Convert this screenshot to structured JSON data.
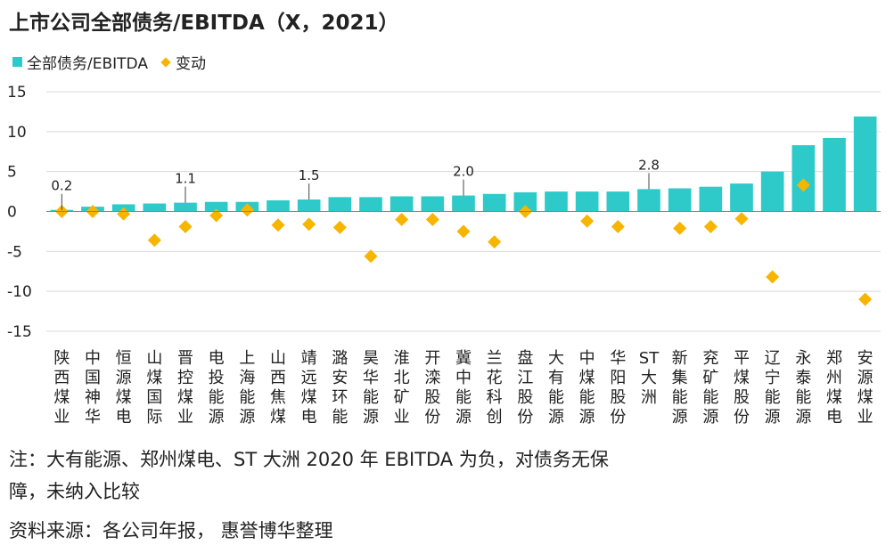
{
  "title": "上市公司全部债务/EBITDA（X，2021）",
  "legend": {
    "bar_label": "全部债务/EBITDA",
    "marker_label": "变动"
  },
  "colors": {
    "bar": "#2ec9c9",
    "marker": "#f7b500",
    "grid": "#d9d9d9",
    "axis": "#888888"
  },
  "chart_data": {
    "type": "bar",
    "categories": [
      "陕西煤业",
      "中国神华",
      "恒源煤电",
      "山煤国际",
      "晋控煤业",
      "电投能源",
      "上海能源",
      "山西焦煤",
      "靖远煤电",
      "潞安环能",
      "昊华能源",
      "淮北矿业",
      "开滦股份",
      "冀中能源",
      "兰花科创",
      "盘江股份",
      "大有能源",
      "中煤能源",
      "华阳股份",
      "ST大洲",
      "新集能源",
      "兖矿能源",
      "平煤股份",
      "辽宁能源",
      "永泰能源",
      "郑州煤电",
      "安源煤业"
    ],
    "series": [
      {
        "name": "全部债务/EBITDA",
        "kind": "bar",
        "values": [
          0.2,
          0.6,
          0.9,
          1.0,
          1.1,
          1.2,
          1.2,
          1.4,
          1.5,
          1.8,
          1.8,
          1.9,
          1.9,
          2.0,
          2.2,
          2.4,
          2.5,
          2.5,
          2.5,
          2.8,
          2.9,
          3.1,
          3.5,
          5.0,
          8.3,
          9.2,
          11.9
        ]
      },
      {
        "name": "变动",
        "kind": "marker",
        "values": [
          0.0,
          0.0,
          -0.3,
          -3.6,
          -1.9,
          -0.5,
          0.2,
          -1.7,
          -1.6,
          -2.0,
          -5.6,
          -1.0,
          -1.0,
          -2.5,
          -3.8,
          0.0,
          null,
          -1.2,
          -1.9,
          null,
          -2.1,
          -1.9,
          -0.9,
          -8.2,
          3.3,
          null,
          -11.0
        ]
      }
    ],
    "data_labels": [
      {
        "index": 0,
        "text": "0.2"
      },
      {
        "index": 4,
        "text": "1.1"
      },
      {
        "index": 8,
        "text": "1.5"
      },
      {
        "index": 13,
        "text": "2.0"
      },
      {
        "index": 19,
        "text": "2.8"
      }
    ],
    "yticks": [
      "15",
      "10",
      "5",
      "0",
      "-5",
      "-10",
      "-15"
    ],
    "ylim": [
      -15,
      15
    ],
    "grid": true,
    "xlabel": "",
    "ylabel": ""
  },
  "notes": [
    "注：大有能源、郑州煤电、ST 大洲 2020 年 EBITDA 为负，对债务无保",
    "障，未纳入比较",
    "资料来源：各公司年报， 惠誉博华整理"
  ]
}
